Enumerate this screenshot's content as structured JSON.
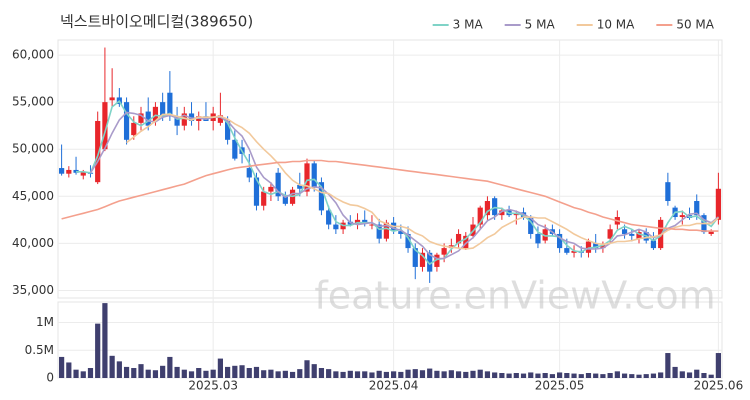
{
  "chart_data": [
    {
      "type": "candlestick",
      "title": "넥스트바이오메디컬(389650)",
      "legend": "top-right",
      "grid": true,
      "watermark": "feature.enViewV.com",
      "up_color": "#e8262b",
      "down_color": "#1f6fd8",
      "ylim": [
        34200,
        61600
      ],
      "yticks": [
        {
          "value": 35000,
          "label": "35,000"
        },
        {
          "value": 40000,
          "label": "40,000"
        },
        {
          "value": 45000,
          "label": "45,000"
        },
        {
          "value": 50000,
          "label": "50,000"
        },
        {
          "value": 55000,
          "label": "55,000"
        },
        {
          "value": 60000,
          "label": "60,000"
        }
      ],
      "open": [
        48000,
        47400,
        47800,
        47200,
        47500,
        46500,
        50000,
        55200,
        55500,
        55000,
        51500,
        52800,
        54000,
        53000,
        55000,
        56000,
        53500,
        52500,
        53800,
        53000,
        53500,
        53000,
        52800,
        53000,
        51000,
        50200,
        48000,
        47000,
        44000,
        45500,
        47500,
        45000,
        44200,
        46200,
        45500,
        48500,
        46500,
        43500,
        42000,
        41500,
        42300,
        42000,
        42500,
        42000,
        42000,
        40500,
        42200,
        41300,
        41000,
        39500,
        37500,
        39000,
        37500,
        38800,
        39500,
        40000,
        39500,
        40800,
        42000,
        43000,
        44800,
        43000,
        43500,
        43000,
        43300,
        42700,
        41000,
        40300,
        41500,
        41000,
        39500,
        39000,
        39200,
        39000,
        40000,
        39500,
        40500,
        42000,
        41500,
        41000,
        40500,
        41200,
        40300,
        39500,
        46500,
        43800,
        42800,
        43000,
        44500,
        43000,
        41000,
        42500
      ],
      "high": [
        50500,
        48200,
        49200,
        47800,
        48300,
        54000,
        60800,
        58600,
        56500,
        55500,
        53500,
        54500,
        55500,
        55000,
        56000,
        58300,
        54500,
        54500,
        55000,
        54000,
        55000,
        54500,
        56000,
        53500,
        52000,
        51000,
        49500,
        47500,
        46000,
        46500,
        48000,
        45500,
        46000,
        47500,
        49000,
        48800,
        47000,
        44000,
        43000,
        42500,
        43000,
        43200,
        43500,
        43000,
        42600,
        42500,
        42800,
        42000,
        41800,
        40000,
        39500,
        39300,
        39000,
        40000,
        40500,
        41500,
        41200,
        42800,
        44000,
        45000,
        45000,
        43800,
        44000,
        43500,
        43800,
        43000,
        41800,
        42000,
        42000,
        41500,
        40500,
        39800,
        39700,
        40500,
        41000,
        40200,
        42000,
        43500,
        42000,
        41500,
        41500,
        41600,
        41200,
        42800,
        47500,
        44000,
        43500,
        43800,
        45200,
        43200,
        41500,
        47500
      ],
      "low": [
        47200,
        47000,
        47300,
        46800,
        47000,
        46300,
        49800,
        54500,
        54500,
        50500,
        51000,
        52000,
        52000,
        52500,
        53000,
        53000,
        51500,
        52000,
        52500,
        52000,
        53000,
        52000,
        52500,
        50500,
        48800,
        48500,
        46500,
        43500,
        43500,
        44500,
        44500,
        44000,
        44000,
        45000,
        45000,
        45500,
        43000,
        41500,
        41000,
        41000,
        41800,
        41500,
        41800,
        41500,
        40000,
        40200,
        41000,
        40500,
        39000,
        36200,
        37000,
        35800,
        37000,
        38000,
        39000,
        39500,
        39300,
        40500,
        41500,
        42500,
        42500,
        42500,
        42800,
        42000,
        42500,
        40500,
        39500,
        40000,
        40800,
        39000,
        38800,
        38500,
        38500,
        38500,
        39000,
        39000,
        40000,
        41500,
        40500,
        40200,
        40000,
        40000,
        39300,
        39300,
        44000,
        42500,
        42000,
        42500,
        42500,
        41000,
        40800,
        42000
      ],
      "close": [
        47400,
        47800,
        47500,
        47600,
        47400,
        53000,
        55000,
        55500,
        54800,
        51000,
        52800,
        53800,
        52500,
        54500,
        53500,
        53500,
        52500,
        53800,
        53000,
        53500,
        53000,
        53800,
        53600,
        51000,
        49000,
        49500,
        47000,
        44000,
        45500,
        46000,
        45000,
        44200,
        45700,
        45800,
        48500,
        46000,
        43500,
        42000,
        41500,
        42200,
        42000,
        42500,
        42100,
        42000,
        40500,
        42200,
        41300,
        41000,
        39500,
        37500,
        39000,
        37000,
        38800,
        39500,
        39800,
        41000,
        40800,
        42000,
        43800,
        44500,
        43000,
        43500,
        43000,
        43200,
        42700,
        41000,
        40000,
        41500,
        41000,
        39500,
        39000,
        39200,
        39000,
        40200,
        39500,
        39800,
        41500,
        42800,
        41000,
        40800,
        41200,
        40300,
        39500,
        42500,
        44500,
        42800,
        43000,
        42700,
        43000,
        41200,
        41300,
        45800
      ],
      "series": [
        {
          "name": "3 MA",
          "color": "#7fd3c7",
          "values": [
            null,
            null,
            47600,
            47600,
            47500,
            49300,
            51800,
            54500,
            55100,
            53800,
            52900,
            52500,
            53000,
            53600,
            53500,
            53800,
            53200,
            53300,
            53100,
            53400,
            53200,
            53400,
            53500,
            52800,
            51200,
            49800,
            48500,
            46800,
            45500,
            45200,
            45500,
            45100,
            45000,
            45200,
            46700,
            46800,
            46000,
            43800,
            42300,
            41900,
            41900,
            42200,
            42200,
            42200,
            41500,
            41600,
            41300,
            41500,
            40600,
            39300,
            38700,
            37800,
            38300,
            38400,
            39400,
            40100,
            40500,
            41300,
            42200,
            43400,
            43800,
            43700,
            43200,
            43200,
            43000,
            42300,
            41200,
            40800,
            40800,
            40700,
            39800,
            39200,
            39100,
            39500,
            39600,
            39800,
            40300,
            41400,
            41800,
            41500,
            41000,
            40800,
            40300,
            40800,
            42200,
            43300,
            43400,
            42800,
            42900,
            42300,
            41800,
            42800
          ]
        },
        {
          "name": "5 MA",
          "color": "#a99bca",
          "values": [
            null,
            null,
            null,
            null,
            47500,
            48700,
            50100,
            51700,
            53100,
            53900,
            53800,
            53600,
            53000,
            52900,
            53400,
            53600,
            53300,
            53600,
            53300,
            53300,
            53200,
            53400,
            53400,
            53000,
            52100,
            51400,
            50000,
            48100,
            47000,
            46400,
            45500,
            44900,
            45300,
            45300,
            45800,
            46000,
            45900,
            45200,
            44300,
            43000,
            42200,
            42000,
            42100,
            42200,
            41800,
            41900,
            41600,
            41400,
            40900,
            40300,
            39700,
            38800,
            38400,
            38400,
            38800,
            39200,
            40000,
            40600,
            41500,
            42400,
            42800,
            43400,
            43600,
            43400,
            43100,
            42700,
            42000,
            41700,
            41200,
            40600,
            40200,
            40000,
            39500,
            39400,
            39400,
            39500,
            40000,
            40800,
            40900,
            41200,
            41500,
            41200,
            40600,
            40900,
            41600,
            41900,
            42500,
            43100,
            43200,
            42500,
            42200,
            42800
          ]
        },
        {
          "name": "10 MA",
          "color": "#f2c99c",
          "values": [
            null,
            null,
            null,
            null,
            null,
            null,
            null,
            null,
            null,
            50700,
            51300,
            51900,
            52400,
            53000,
            53700,
            53700,
            53500,
            53300,
            53100,
            53400,
            53400,
            53400,
            53500,
            53200,
            52700,
            52300,
            51700,
            50800,
            50000,
            49300,
            48500,
            47500,
            46700,
            46200,
            46100,
            45800,
            45400,
            45300,
            44800,
            44400,
            44100,
            44000,
            43700,
            43300,
            42400,
            42100,
            41800,
            41800,
            41600,
            41100,
            40800,
            40200,
            39900,
            39700,
            39600,
            39500,
            39400,
            39500,
            40000,
            40600,
            41000,
            41700,
            42100,
            42500,
            42800,
            42800,
            42700,
            42700,
            42300,
            41900,
            41500,
            41000,
            40600,
            40300,
            40000,
            39900,
            40000,
            40200,
            40200,
            40300,
            40500,
            40600,
            40700,
            40900,
            41400,
            41700,
            41900,
            41900,
            42100,
            42100,
            42100,
            42700
          ]
        },
        {
          "name": "50 MA",
          "color": "#f4a08d",
          "values": [
            42600,
            42800,
            43000,
            43200,
            43400,
            43600,
            43900,
            44200,
            44500,
            44700,
            44900,
            45100,
            45300,
            45500,
            45700,
            45900,
            46100,
            46300,
            46600,
            46900,
            47200,
            47400,
            47600,
            47800,
            48000,
            48100,
            48200,
            48300,
            48400,
            48500,
            48600,
            48600,
            48700,
            48700,
            48800,
            48800,
            48800,
            48700,
            48700,
            48600,
            48500,
            48400,
            48300,
            48200,
            48100,
            48000,
            47900,
            47800,
            47700,
            47600,
            47500,
            47400,
            47300,
            47200,
            47100,
            47000,
            46900,
            46800,
            46700,
            46600,
            46400,
            46200,
            46000,
            45800,
            45600,
            45400,
            45200,
            45000,
            44700,
            44400,
            44100,
            43800,
            43600,
            43300,
            43100,
            42800,
            42600,
            42400,
            42200,
            42000,
            41900,
            41800,
            41700,
            41600,
            41600,
            41500,
            41500,
            41400,
            41400,
            41300,
            41300,
            41300
          ]
        }
      ]
    },
    {
      "type": "bar",
      "color": "#3f3f6e",
      "grid": true,
      "categories": [
        null,
        null,
        null,
        null,
        null,
        null,
        null,
        null,
        null,
        null,
        null,
        null,
        null,
        null,
        null,
        null,
        null,
        null,
        null,
        null,
        null,
        "2025.03",
        null,
        null,
        null,
        null,
        null,
        null,
        null,
        null,
        null,
        null,
        null,
        null,
        null,
        null,
        null,
        null,
        null,
        null,
        null,
        null,
        null,
        null,
        null,
        null,
        "2025.04",
        null,
        null,
        null,
        null,
        null,
        null,
        null,
        null,
        null,
        null,
        null,
        null,
        null,
        null,
        null,
        null,
        null,
        null,
        null,
        null,
        null,
        null,
        "2025.05",
        null,
        null,
        null,
        null,
        null,
        null,
        null,
        null,
        null,
        null,
        null,
        null,
        null,
        null,
        null,
        null,
        null,
        null,
        null,
        null,
        null,
        "2025.06"
      ],
      "values": [
        380000,
        280000,
        150000,
        120000,
        180000,
        980000,
        1350000,
        400000,
        300000,
        200000,
        180000,
        250000,
        150000,
        140000,
        220000,
        380000,
        200000,
        150000,
        120000,
        180000,
        130000,
        150000,
        350000,
        200000,
        220000,
        230000,
        180000,
        200000,
        140000,
        150000,
        120000,
        130000,
        110000,
        160000,
        320000,
        250000,
        180000,
        160000,
        120000,
        110000,
        130000,
        120000,
        120000,
        100000,
        130000,
        110000,
        120000,
        110000,
        150000,
        160000,
        140000,
        170000,
        130000,
        120000,
        140000,
        120000,
        110000,
        130000,
        150000,
        120000,
        100000,
        90000,
        80000,
        90000,
        80000,
        100000,
        80000,
        90000,
        70000,
        100000,
        90000,
        80000,
        70000,
        90000,
        80000,
        70000,
        90000,
        120000,
        80000,
        70000,
        60000,
        70000,
        80000,
        100000,
        450000,
        200000,
        120000,
        100000,
        150000,
        90000,
        60000,
        450000
      ],
      "ylim": [
        0,
        1370000
      ],
      "yticks": [
        0,
        {
          "value": 500000,
          "label": "0.5M"
        },
        {
          "value": 1000000,
          "label": "1M"
        }
      ]
    }
  ]
}
